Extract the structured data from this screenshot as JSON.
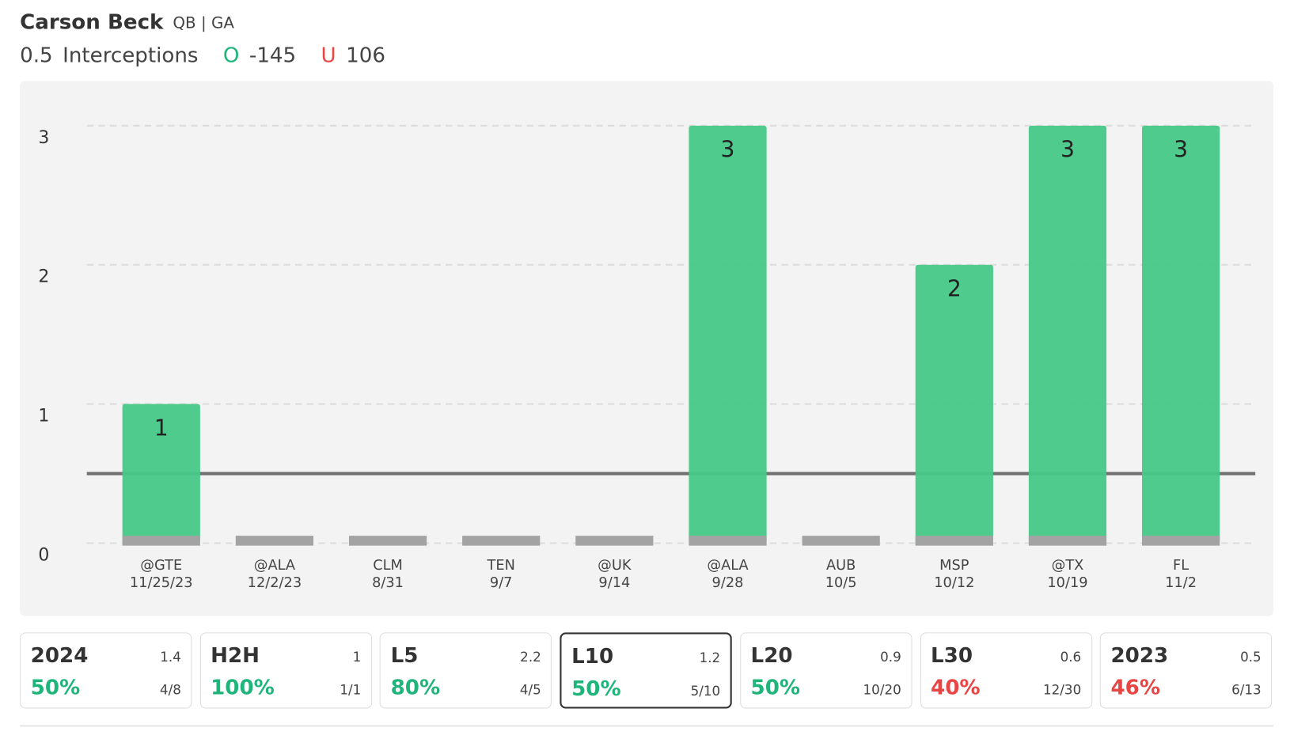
{
  "header": {
    "name": "Carson Beck",
    "position": "QB | GA",
    "over_letter": "O",
    "over_odds": -145,
    "under_letter": "U",
    "under_odds": 106
  },
  "chart_data": {
    "type": "bar",
    "stat": "Interceptions",
    "threshold": 0.5,
    "categories": [
      "@GTE",
      "@ALA",
      "CLM",
      "TEN",
      "@UK",
      "@ALA",
      "AUB",
      "MSP",
      "@TX",
      "FL"
    ],
    "dates": [
      "11/25/23",
      "12/2/23",
      "8/31",
      "9/7",
      "9/14",
      "9/28",
      "10/5",
      "10/12",
      "10/19",
      "11/2"
    ],
    "values": [
      1,
      0,
      0,
      0,
      0,
      3,
      0,
      2,
      3,
      3
    ],
    "color": "#45c887",
    "zero_color": "#a3a3a3",
    "line_color": "#707070",
    "ylim": [
      0,
      3
    ],
    "yticks": [
      0,
      1,
      2,
      3
    ],
    "grid": true
  },
  "cards": [
    {
      "label": "2024",
      "avg": "1.4",
      "pct": "50%",
      "frac": "4/8",
      "color": "#1fb57a"
    },
    {
      "label": "H2H",
      "avg": "1",
      "pct": "100%",
      "frac": "1/1",
      "color": "#1fb57a"
    },
    {
      "label": "L5",
      "avg": "2.2",
      "pct": "80%",
      "frac": "4/5",
      "color": "#1fb57a"
    },
    {
      "label": "L10",
      "avg": "1.2",
      "pct": "50%",
      "frac": "5/10",
      "color": "#1fb57a",
      "selected": true
    },
    {
      "label": "L20",
      "avg": "0.9",
      "pct": "50%",
      "frac": "10/20",
      "color": "#1fb57a"
    },
    {
      "label": "L30",
      "avg": "0.6",
      "pct": "40%",
      "frac": "12/30",
      "color": "#e84545"
    },
    {
      "label": "2023",
      "avg": "0.5",
      "pct": "46%",
      "frac": "6/13",
      "color": "#e84545"
    }
  ]
}
